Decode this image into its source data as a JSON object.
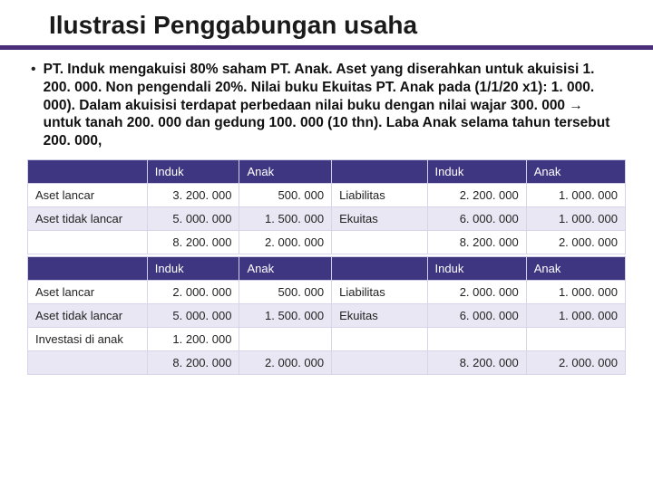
{
  "title": "Ilustrasi Penggabungan usaha",
  "bullet": "PT. Induk mengakuisi 80% saham PT. Anak. Aset yang diserahkan untuk akuisisi 1. 200. 000. Non pengendali 20%. Nilai buku Ekuitas PT. Anak pada (1/1/20 x1): 1. 000. 000). Dalam akuisisi terdapat perbedaan nilai buku dengan nilai wajar 300. 000 → untuk tanah 200. 000 dan gedung 100. 000 (10 thn). Laba Anak selama tahun tersebut 200. 000,",
  "headers": {
    "induk": "Induk",
    "anak": "Anak"
  },
  "labels": {
    "aset_lancar": "Aset lancar",
    "aset_tidak_lancar": "Aset tidak lancar",
    "liabilitas": "Liabilitas",
    "ekuitas": "Ekuitas",
    "investasi_di_anak": "Investasi di anak"
  },
  "t1": {
    "r1": {
      "c1": "3. 200. 000",
      "c2": "500. 000",
      "mid": "Liabilitas",
      "c3": "2. 200. 000",
      "c4": "1. 000. 000"
    },
    "r2": {
      "c1": "5. 000. 000",
      "c2": "1. 500. 000",
      "mid": "Ekuitas",
      "c3": "6. 000. 000",
      "c4": "1. 000. 000"
    },
    "r3": {
      "c1": "8. 200. 000",
      "c2": "2. 000. 000",
      "c3": "8. 200. 000",
      "c4": "2. 000. 000"
    }
  },
  "t2": {
    "r1": {
      "c1": "2. 000. 000",
      "c2": "500. 000",
      "mid": "Liabilitas",
      "c3": "2. 000. 000",
      "c4": "1. 000. 000"
    },
    "r2": {
      "c1": "5. 000. 000",
      "c2": "1. 500. 000",
      "mid": "Ekuitas",
      "c3": "6. 000. 000",
      "c4": "1. 000. 000"
    },
    "r3": {
      "c1": "1. 200. 000"
    },
    "r4": {
      "c1": "8. 200. 000",
      "c2": "2. 000. 000",
      "c3": "8. 200. 000",
      "c4": "2. 000. 000"
    }
  },
  "colors": {
    "header_bg": "#3e3680",
    "band_bg": "#e9e7f3",
    "underline": "#4a2e7a"
  }
}
